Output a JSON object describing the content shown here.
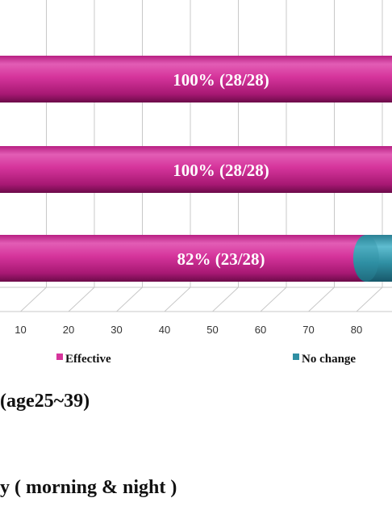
{
  "chart_data": {
    "type": "bar",
    "orientation": "horizontal",
    "style": "3d-cylinder",
    "categories": [
      "",
      "",
      ""
    ],
    "series": [
      {
        "name": "Effective",
        "values": [
          100,
          100,
          82
        ]
      },
      {
        "name": "No change",
        "values": [
          0,
          0,
          18
        ]
      }
    ],
    "data_labels": [
      "100% (28/28)",
      "100% (28/28)",
      "82% (23/28)"
    ],
    "x_ticks": [
      "10",
      "20",
      "30",
      "40",
      "50",
      "60",
      "70",
      "80"
    ],
    "xlim": [
      0,
      100
    ],
    "grid": true,
    "legend": [
      "Effective",
      "No change"
    ],
    "legend_position": "bottom",
    "colors": {
      "effective": "#d6359c",
      "no_change": "#2f8fa3",
      "grid": "#c8c8c8"
    }
  },
  "captions": {
    "line1": "(age25~39)",
    "line2": "y ( morning & night )"
  }
}
